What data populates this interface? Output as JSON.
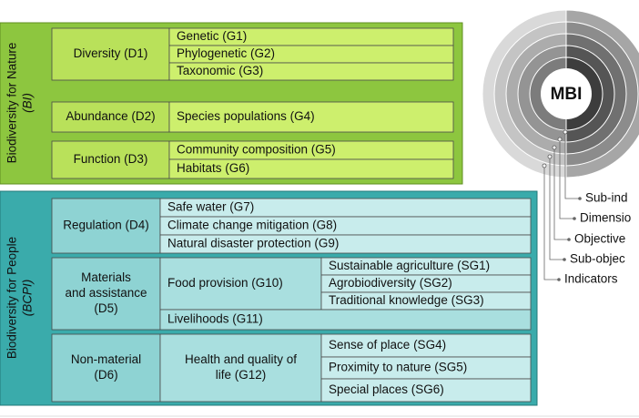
{
  "nature": {
    "title": "Biodiversity for Nature",
    "code": "(BI)",
    "dimensions": [
      {
        "label": [
          "Diversity (D1)"
        ],
        "objectives": [
          {
            "label": [
              "Genetic (G1)"
            ]
          },
          {
            "label": [
              "Phylogenetic (G2)"
            ]
          },
          {
            "label": [
              "Taxonomic (G3)"
            ]
          }
        ]
      },
      {
        "label": [
          "Abundance (D2)"
        ],
        "objectives": [
          {
            "label": [
              "Species populations (G4)"
            ]
          }
        ]
      },
      {
        "label": [
          "Function (D3)"
        ],
        "objectives": [
          {
            "label": [
              "Community composition (G5)"
            ]
          },
          {
            "label": [
              "Habitats (G6)"
            ]
          }
        ]
      }
    ]
  },
  "people": {
    "title": "Biodiversity for People",
    "code": "(BCPI)",
    "dimensions": [
      {
        "label": [
          "Regulation (D4)"
        ],
        "objectives": [
          {
            "label": [
              "Safe water (G7)"
            ]
          },
          {
            "label": [
              "Climate change mitigation (G8)"
            ]
          },
          {
            "label": [
              "Natural disaster protection (G9)"
            ]
          }
        ]
      },
      {
        "label": [
          "Materials",
          "and assistance",
          "(D5)"
        ],
        "objectives": [
          {
            "label": [
              "Food provision (G10)"
            ],
            "sub_objectives": [
              "Sustainable agriculture (SG1)",
              "Agrobiodiversity (SG2)",
              "Traditional knowledge (SG3)"
            ]
          },
          {
            "label": [
              "Livelihoods (G11)"
            ]
          }
        ]
      },
      {
        "label": [
          "Non-material",
          "(D6)"
        ],
        "objectives": [
          {
            "label": [
              "Health and quality of",
              "life (G12)"
            ],
            "sub_objectives": [
              "Sense of place (SG4)",
              "Proximity to nature (SG5)",
              "Special places (SG6)"
            ]
          }
        ]
      }
    ]
  },
  "legend": {
    "center": "MBI",
    "levels": [
      "Sub-ind",
      "Dimensio",
      "Objective",
      "Sub-objec",
      "Indicators"
    ]
  }
}
